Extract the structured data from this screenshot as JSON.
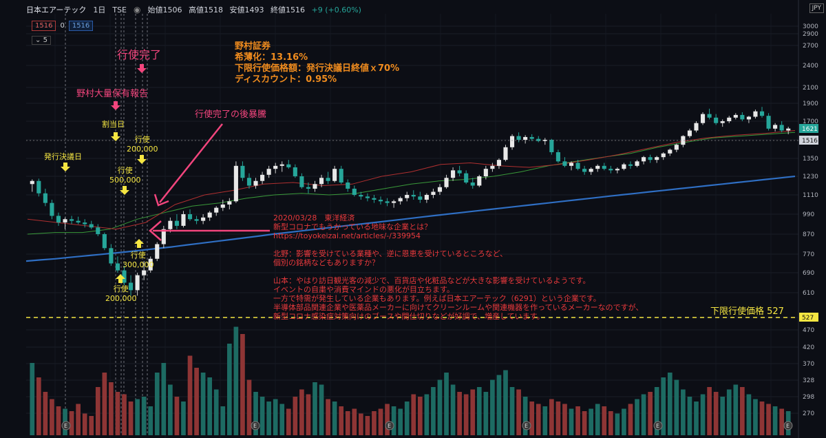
{
  "header": {
    "symbol": "日本エアーテック",
    "interval": "1日",
    "exchange": "TSE",
    "open": "始値1506",
    "high": "高値1518",
    "low": "安値1493",
    "close": "終値1516",
    "change": "+9 (+0.60%)",
    "badge_sell": "1516",
    "badge_spread": "0",
    "badge_buy": "1516",
    "indicator_count": "5",
    "currency": "JPY"
  },
  "annotations": {
    "exercise_complete": "行使完了",
    "nomura_report": "野村大量保有報告",
    "allotment_day": "割当日",
    "issue_decision": "発行決議日",
    "after_exercise_surge": "行使完了の後暴騰",
    "ex_200k_top_1": "行使",
    "ex_200k_top_2": "200,000",
    "ex_500k_1": "行使",
    "ex_500k_2": "500,000",
    "ex_300k_1": "行使",
    "ex_300k_2": "300,000",
    "ex_200k_bot_1": "行使",
    "ex_200k_bot_2": "200,000",
    "nomura_box": {
      "line1": "野村証券",
      "line2": "希薄化：13.16%",
      "line3": "下限行使価格額：発行決議日終値ｘ70%",
      "line4": "ディスカウント：0.95%"
    },
    "news": {
      "l1": "2020/03/28　東洋経済",
      "l2": "新型コロナでもうかっている地味な企業とは？",
      "l3": "https://toyokeizai.net/articles/-/339954",
      "l4": "北野：影響を受けている業種や、逆に恩恵を受けているところなど、",
      "l5": "個別の銘柄などもありますか？",
      "l6": "山本：やはり訪日観光客の減少で、百貨店や化粧品などが大きな影響を受けているようです。",
      "l7": "イベントの自粛や消費マインドの悪化が目立ちます。",
      "l8": "一方で特需が発生している企業もあります。例えば日本エアーテック（6291）という企業です。",
      "l9": "半導体部品関連企業や医薬品メーカーに向けてクリーンルームや関連機器を作っているメーカーなのですが、",
      "l10": "新型コロナ感染症対策向けのブースや間仕切りなどが好調で、増産しています。"
    },
    "floor_label": "下限行使価格 527"
  },
  "colors": {
    "up": "#26a69a",
    "down": "#ef5350",
    "ma_blue": "#2f6fc4",
    "ma_green": "#3a9a3a",
    "ma_red": "#b03030",
    "annotation_pink": "#f2457d",
    "annotation_yellow": "#f5e642",
    "annotation_orange": "#f08c1e"
  },
  "chart_data": {
    "type": "candlestick",
    "price_axis_ticks": [
      3000,
      2900,
      2700,
      2400,
      2100,
      1900,
      1700,
      1500,
      1350,
      1230,
      1110,
      990,
      870,
      770,
      690,
      610,
      527,
      470,
      420,
      370,
      328,
      298,
      270
    ],
    "last_price_label": "1621",
    "current_price_label": "1516",
    "floor_price_label": "527",
    "candles": [
      {
        "o": 1180,
        "h": 1210,
        "l": 1130,
        "c": 1200
      },
      {
        "o": 1200,
        "h": 1215,
        "l": 1100,
        "c": 1120
      },
      {
        "o": 1120,
        "h": 1150,
        "l": 1040,
        "c": 1060
      },
      {
        "o": 1060,
        "h": 1080,
        "l": 960,
        "c": 980
      },
      {
        "o": 980,
        "h": 1000,
        "l": 920,
        "c": 940
      },
      {
        "o": 940,
        "h": 970,
        "l": 900,
        "c": 960
      },
      {
        "o": 960,
        "h": 980,
        "l": 930,
        "c": 950
      },
      {
        "o": 950,
        "h": 975,
        "l": 930,
        "c": 940
      },
      {
        "o": 940,
        "h": 960,
        "l": 910,
        "c": 930
      },
      {
        "o": 930,
        "h": 950,
        "l": 900,
        "c": 910
      },
      {
        "o": 910,
        "h": 930,
        "l": 860,
        "c": 870
      },
      {
        "o": 870,
        "h": 880,
        "l": 790,
        "c": 800
      },
      {
        "o": 800,
        "h": 820,
        "l": 720,
        "c": 730
      },
      {
        "o": 730,
        "h": 760,
        "l": 690,
        "c": 700
      },
      {
        "o": 700,
        "h": 720,
        "l": 640,
        "c": 650
      },
      {
        "o": 650,
        "h": 680,
        "l": 600,
        "c": 620
      },
      {
        "o": 620,
        "h": 690,
        "l": 600,
        "c": 680
      },
      {
        "o": 680,
        "h": 740,
        "l": 660,
        "c": 700
      },
      {
        "o": 700,
        "h": 760,
        "l": 690,
        "c": 750
      },
      {
        "o": 750,
        "h": 830,
        "l": 740,
        "c": 820
      },
      {
        "o": 820,
        "h": 920,
        "l": 800,
        "c": 900
      },
      {
        "o": 900,
        "h": 970,
        "l": 880,
        "c": 950
      },
      {
        "o": 950,
        "h": 990,
        "l": 900,
        "c": 920
      },
      {
        "o": 920,
        "h": 1010,
        "l": 910,
        "c": 990
      },
      {
        "o": 990,
        "h": 1020,
        "l": 950,
        "c": 960
      },
      {
        "o": 960,
        "h": 980,
        "l": 930,
        "c": 950
      },
      {
        "o": 950,
        "h": 990,
        "l": 930,
        "c": 970
      },
      {
        "o": 970,
        "h": 1010,
        "l": 950,
        "c": 1000
      },
      {
        "o": 1000,
        "h": 1040,
        "l": 980,
        "c": 1030
      },
      {
        "o": 1030,
        "h": 1080,
        "l": 1010,
        "c": 1050
      },
      {
        "o": 1050,
        "h": 1090,
        "l": 1020,
        "c": 1070
      },
      {
        "o": 1070,
        "h": 1330,
        "l": 1060,
        "c": 1300
      },
      {
        "o": 1300,
        "h": 1330,
        "l": 1200,
        "c": 1220
      },
      {
        "o": 1220,
        "h": 1250,
        "l": 1150,
        "c": 1170
      },
      {
        "o": 1170,
        "h": 1220,
        "l": 1150,
        "c": 1200
      },
      {
        "o": 1200,
        "h": 1260,
        "l": 1180,
        "c": 1240
      },
      {
        "o": 1240,
        "h": 1300,
        "l": 1220,
        "c": 1280
      },
      {
        "o": 1280,
        "h": 1320,
        "l": 1250,
        "c": 1300
      },
      {
        "o": 1300,
        "h": 1330,
        "l": 1260,
        "c": 1310
      },
      {
        "o": 1310,
        "h": 1340,
        "l": 1280,
        "c": 1290
      },
      {
        "o": 1290,
        "h": 1310,
        "l": 1220,
        "c": 1230
      },
      {
        "o": 1230,
        "h": 1250,
        "l": 1150,
        "c": 1160
      },
      {
        "o": 1160,
        "h": 1190,
        "l": 1120,
        "c": 1150
      },
      {
        "o": 1150,
        "h": 1200,
        "l": 1130,
        "c": 1180
      },
      {
        "o": 1180,
        "h": 1240,
        "l": 1160,
        "c": 1220
      },
      {
        "o": 1220,
        "h": 1260,
        "l": 1180,
        "c": 1200
      },
      {
        "o": 1200,
        "h": 1300,
        "l": 1190,
        "c": 1280
      },
      {
        "o": 1280,
        "h": 1300,
        "l": 1180,
        "c": 1190
      },
      {
        "o": 1190,
        "h": 1210,
        "l": 1130,
        "c": 1150
      },
      {
        "o": 1150,
        "h": 1170,
        "l": 1100,
        "c": 1110
      },
      {
        "o": 1110,
        "h": 1130,
        "l": 1080,
        "c": 1100
      },
      {
        "o": 1100,
        "h": 1120,
        "l": 1070,
        "c": 1090
      },
      {
        "o": 1090,
        "h": 1110,
        "l": 1060,
        "c": 1080
      },
      {
        "o": 1080,
        "h": 1100,
        "l": 1050,
        "c": 1070
      },
      {
        "o": 1070,
        "h": 1090,
        "l": 1040,
        "c": 1060
      },
      {
        "o": 1060,
        "h": 1080,
        "l": 1030,
        "c": 1070
      },
      {
        "o": 1070,
        "h": 1100,
        "l": 1050,
        "c": 1090
      },
      {
        "o": 1090,
        "h": 1130,
        "l": 1070,
        "c": 1110
      },
      {
        "o": 1110,
        "h": 1140,
        "l": 1080,
        "c": 1100
      },
      {
        "o": 1100,
        "h": 1130,
        "l": 1060,
        "c": 1080
      },
      {
        "o": 1080,
        "h": 1120,
        "l": 1060,
        "c": 1110
      },
      {
        "o": 1110,
        "h": 1150,
        "l": 1090,
        "c": 1130
      },
      {
        "o": 1130,
        "h": 1180,
        "l": 1110,
        "c": 1160
      },
      {
        "o": 1160,
        "h": 1240,
        "l": 1150,
        "c": 1220
      },
      {
        "o": 1220,
        "h": 1290,
        "l": 1200,
        "c": 1270
      },
      {
        "o": 1270,
        "h": 1300,
        "l": 1230,
        "c": 1250
      },
      {
        "o": 1250,
        "h": 1270,
        "l": 1180,
        "c": 1190
      },
      {
        "o": 1190,
        "h": 1220,
        "l": 1150,
        "c": 1170
      },
      {
        "o": 1170,
        "h": 1240,
        "l": 1160,
        "c": 1230
      },
      {
        "o": 1230,
        "h": 1300,
        "l": 1210,
        "c": 1280
      },
      {
        "o": 1280,
        "h": 1320,
        "l": 1260,
        "c": 1300
      },
      {
        "o": 1300,
        "h": 1350,
        "l": 1280,
        "c": 1340
      },
      {
        "o": 1340,
        "h": 1460,
        "l": 1330,
        "c": 1440
      },
      {
        "o": 1440,
        "h": 1560,
        "l": 1420,
        "c": 1540
      },
      {
        "o": 1540,
        "h": 1580,
        "l": 1480,
        "c": 1500
      },
      {
        "o": 1500,
        "h": 1550,
        "l": 1470,
        "c": 1530
      },
      {
        "o": 1530,
        "h": 1560,
        "l": 1490,
        "c": 1510
      },
      {
        "o": 1510,
        "h": 1540,
        "l": 1480,
        "c": 1490
      },
      {
        "o": 1490,
        "h": 1520,
        "l": 1460,
        "c": 1500
      },
      {
        "o": 1500,
        "h": 1510,
        "l": 1380,
        "c": 1400
      },
      {
        "o": 1400,
        "h": 1420,
        "l": 1320,
        "c": 1330
      },
      {
        "o": 1330,
        "h": 1360,
        "l": 1290,
        "c": 1300
      },
      {
        "o": 1300,
        "h": 1330,
        "l": 1270,
        "c": 1320
      },
      {
        "o": 1320,
        "h": 1340,
        "l": 1270,
        "c": 1280
      },
      {
        "o": 1280,
        "h": 1300,
        "l": 1240,
        "c": 1260
      },
      {
        "o": 1260,
        "h": 1290,
        "l": 1240,
        "c": 1280
      },
      {
        "o": 1280,
        "h": 1310,
        "l": 1260,
        "c": 1300
      },
      {
        "o": 1300,
        "h": 1320,
        "l": 1270,
        "c": 1280
      },
      {
        "o": 1280,
        "h": 1300,
        "l": 1250,
        "c": 1270
      },
      {
        "o": 1270,
        "h": 1290,
        "l": 1250,
        "c": 1280
      },
      {
        "o": 1280,
        "h": 1320,
        "l": 1270,
        "c": 1310
      },
      {
        "o": 1310,
        "h": 1330,
        "l": 1280,
        "c": 1300
      },
      {
        "o": 1300,
        "h": 1340,
        "l": 1290,
        "c": 1330
      },
      {
        "o": 1330,
        "h": 1370,
        "l": 1310,
        "c": 1360
      },
      {
        "o": 1360,
        "h": 1380,
        "l": 1320,
        "c": 1340
      },
      {
        "o": 1340,
        "h": 1370,
        "l": 1320,
        "c": 1360
      },
      {
        "o": 1360,
        "h": 1400,
        "l": 1340,
        "c": 1390
      },
      {
        "o": 1390,
        "h": 1430,
        "l": 1370,
        "c": 1420
      },
      {
        "o": 1420,
        "h": 1470,
        "l": 1400,
        "c": 1460
      },
      {
        "o": 1460,
        "h": 1550,
        "l": 1440,
        "c": 1540
      },
      {
        "o": 1540,
        "h": 1620,
        "l": 1520,
        "c": 1600
      },
      {
        "o": 1600,
        "h": 1700,
        "l": 1580,
        "c": 1680
      },
      {
        "o": 1680,
        "h": 1800,
        "l": 1660,
        "c": 1780
      },
      {
        "o": 1780,
        "h": 1840,
        "l": 1720,
        "c": 1740
      },
      {
        "o": 1740,
        "h": 1780,
        "l": 1660,
        "c": 1680
      },
      {
        "o": 1680,
        "h": 1720,
        "l": 1640,
        "c": 1700
      },
      {
        "o": 1700,
        "h": 1760,
        "l": 1680,
        "c": 1740
      },
      {
        "o": 1740,
        "h": 1790,
        "l": 1720,
        "c": 1770
      },
      {
        "o": 1770,
        "h": 1800,
        "l": 1700,
        "c": 1720
      },
      {
        "o": 1720,
        "h": 1760,
        "l": 1680,
        "c": 1750
      },
      {
        "o": 1750,
        "h": 1830,
        "l": 1730,
        "c": 1810
      },
      {
        "o": 1810,
        "h": 1860,
        "l": 1740,
        "c": 1760
      },
      {
        "o": 1760,
        "h": 1790,
        "l": 1600,
        "c": 1620
      },
      {
        "o": 1620,
        "h": 1680,
        "l": 1590,
        "c": 1660
      },
      {
        "o": 1660,
        "h": 1700,
        "l": 1580,
        "c": 1600
      },
      {
        "o": 1600,
        "h": 1640,
        "l": 1560,
        "c": 1621
      }
    ],
    "volume_bars": [
      300,
      240,
      180,
      150,
      120,
      110,
      100,
      130,
      90,
      80,
      200,
      260,
      220,
      180,
      170,
      140,
      150,
      160,
      120,
      260,
      300,
      210,
      160,
      140,
      330,
      280,
      260,
      240,
      190,
      120,
      380,
      450,
      420,
      230,
      180,
      160,
      140,
      150,
      130,
      110,
      160,
      190,
      170,
      220,
      210,
      150,
      140,
      120,
      100,
      110,
      90,
      80,
      100,
      110,
      130,
      120,
      110,
      140,
      170,
      160,
      170,
      200,
      230,
      260,
      210,
      180,
      170,
      190,
      200,
      180,
      230,
      250,
      270,
      200,
      190,
      160,
      140,
      130,
      120,
      150,
      140,
      130,
      110,
      120,
      100,
      110,
      130,
      120,
      100,
      90,
      110,
      130,
      150,
      170,
      180,
      200,
      240,
      260,
      230,
      190,
      160,
      140,
      170,
      200,
      180,
      160,
      190,
      210,
      200,
      170,
      150,
      140,
      130,
      120,
      110,
      100
    ],
    "moving_averages": [
      {
        "values": [
          740,
          745,
          750,
          756,
          762,
          768,
          775,
          782,
          790,
          798,
          806,
          815,
          824,
          833,
          842,
          851,
          860,
          870,
          880,
          890,
          900,
          910,
          920,
          930,
          940,
          950,
          960,
          970,
          980,
          990,
          1000,
          1010,
          1020,
          1030,
          1040,
          1050,
          1060,
          1070,
          1080,
          1090,
          1100,
          1110,
          1120,
          1130,
          1140,
          1150,
          1160,
          1170,
          1180,
          1190,
          1200,
          1210,
          1220,
          1230
        ]
      },
      {
        "values": [
          870,
          880,
          880,
          900,
          960,
          1000,
          1040,
          1060,
          1090,
          1110,
          1120,
          1110,
          1120,
          1150,
          1180,
          1200,
          1210,
          1230,
          1260,
          1300,
          1330,
          1360,
          1390,
          1440,
          1480,
          1520,
          1540,
          1560,
          1580
        ]
      },
      {
        "values": [
          960,
          940,
          920,
          900,
          940,
          1050,
          1110,
          1140,
          1180,
          1190,
          1170,
          1180,
          1230,
          1260,
          1310,
          1320,
          1300,
          1290,
          1310,
          1340,
          1380,
          1430,
          1480,
          1520,
          1550,
          1570,
          1600
        ]
      }
    ]
  }
}
